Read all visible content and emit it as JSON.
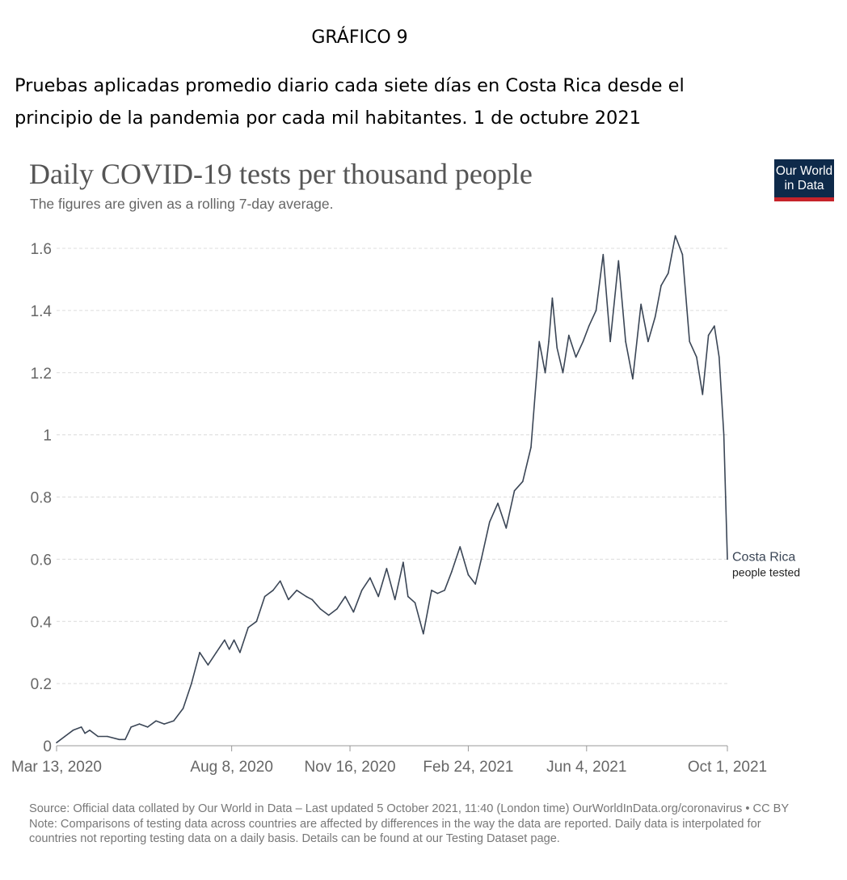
{
  "document": {
    "label": "GRÁFICO 9",
    "title": "Pruebas aplicadas promedio diario cada siete días en Costa Rica desde el principio de la pandemia por cada mil habitantes. 1 de octubre 2021"
  },
  "logo": {
    "line1": "Our World",
    "line2": "in Data",
    "bg": "#0e2a4a",
    "accent": "#c6232a"
  },
  "footer": {
    "source": "Source: Official data collated by Our World in Data – Last updated 5 October 2021, 11:40 (London time)   OurWorldInData.org/coronavirus • CC BY",
    "note_line1": "Note: Comparisons of testing data across countries are affected by differences in the way the data are reported. Daily data is interpolated for",
    "note_line2": "countries not reporting testing data on a daily basis. Details can be found at our Testing Dataset page."
  },
  "chart_data": {
    "type": "line",
    "title": "Daily COVID-19 tests per thousand people",
    "subtitle": "The figures are given as a rolling 7-day average.",
    "x_ticks": [
      "Mar 13, 2020",
      "Aug 8, 2020",
      "Nov 16, 2020",
      "Feb 24, 2021",
      "Jun 4, 2021",
      "Oct 1, 2021"
    ],
    "y_ticks": [
      "0",
      "0.2",
      "0.4",
      "0.6",
      "0.8",
      "1",
      "1.2",
      "1.4",
      "1.6"
    ],
    "xlim": [
      "2020-03-13",
      "2021-10-01"
    ],
    "ylim": [
      0,
      1.6
    ],
    "grid": "horizontal dashed",
    "line_color": "#3b4656",
    "series": [
      {
        "name": "Costa Rica",
        "label_line1": "Costa Rica",
        "label_line2": "people tested",
        "x": [
          "2020-03-13",
          "2020-03-20",
          "2020-03-27",
          "2020-04-03",
          "2020-04-06",
          "2020-04-10",
          "2020-04-17",
          "2020-04-25",
          "2020-05-05",
          "2020-05-10",
          "2020-05-15",
          "2020-05-22",
          "2020-05-29",
          "2020-06-05",
          "2020-06-12",
          "2020-06-20",
          "2020-06-28",
          "2020-07-05",
          "2020-07-12",
          "2020-07-19",
          "2020-07-26",
          "2020-08-02",
          "2020-08-06",
          "2020-08-10",
          "2020-08-15",
          "2020-08-22",
          "2020-08-29",
          "2020-09-05",
          "2020-09-12",
          "2020-09-18",
          "2020-09-25",
          "2020-10-02",
          "2020-10-10",
          "2020-10-15",
          "2020-10-22",
          "2020-10-29",
          "2020-11-05",
          "2020-11-12",
          "2020-11-19",
          "2020-11-26",
          "2020-12-03",
          "2020-12-10",
          "2020-12-17",
          "2020-12-24",
          "2020-12-31",
          "2021-01-04",
          "2021-01-10",
          "2021-01-17",
          "2021-01-24",
          "2021-01-29",
          "2021-02-04",
          "2021-02-10",
          "2021-02-17",
          "2021-02-24",
          "2021-03-02",
          "2021-03-07",
          "2021-03-14",
          "2021-03-21",
          "2021-03-28",
          "2021-04-04",
          "2021-04-11",
          "2021-04-18",
          "2021-04-25",
          "2021-04-30",
          "2021-05-03",
          "2021-05-06",
          "2021-05-10",
          "2021-05-15",
          "2021-05-20",
          "2021-05-26",
          "2021-06-01",
          "2021-06-06",
          "2021-06-12",
          "2021-06-18",
          "2021-06-24",
          "2021-07-01",
          "2021-07-07",
          "2021-07-13",
          "2021-07-20",
          "2021-07-26",
          "2021-08-01",
          "2021-08-06",
          "2021-08-12",
          "2021-08-18",
          "2021-08-24",
          "2021-08-30",
          "2021-09-05",
          "2021-09-10",
          "2021-09-15",
          "2021-09-20",
          "2021-09-24",
          "2021-09-28",
          "2021-10-01"
        ],
        "y": [
          0.01,
          0.03,
          0.05,
          0.06,
          0.04,
          0.05,
          0.03,
          0.03,
          0.02,
          0.02,
          0.06,
          0.07,
          0.06,
          0.08,
          0.07,
          0.08,
          0.12,
          0.2,
          0.3,
          0.26,
          0.3,
          0.34,
          0.31,
          0.34,
          0.3,
          0.38,
          0.4,
          0.48,
          0.5,
          0.53,
          0.47,
          0.5,
          0.48,
          0.47,
          0.44,
          0.42,
          0.44,
          0.48,
          0.43,
          0.5,
          0.54,
          0.48,
          0.57,
          0.47,
          0.59,
          0.48,
          0.46,
          0.36,
          0.5,
          0.49,
          0.5,
          0.56,
          0.64,
          0.55,
          0.52,
          0.6,
          0.72,
          0.78,
          0.7,
          0.82,
          0.85,
          0.96,
          1.3,
          1.2,
          1.3,
          1.44,
          1.28,
          1.2,
          1.32,
          1.25,
          1.3,
          1.35,
          1.4,
          1.58,
          1.3,
          1.56,
          1.3,
          1.18,
          1.42,
          1.3,
          1.38,
          1.48,
          1.52,
          1.64,
          1.58,
          1.3,
          1.25,
          1.13,
          1.32,
          1.35,
          1.25,
          1.0,
          0.6
        ]
      }
    ]
  }
}
